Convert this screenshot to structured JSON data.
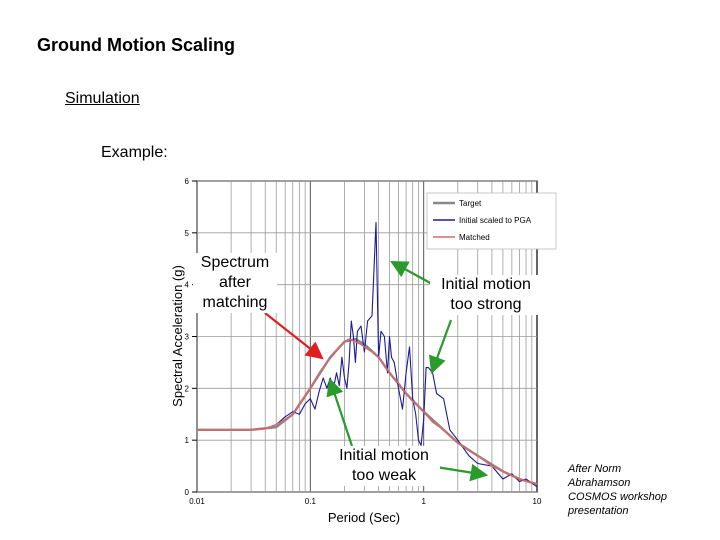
{
  "slide": {
    "title": "Ground Motion Scaling",
    "subtitle": "Simulation",
    "example_label": "Example:",
    "credit": "After Norm\nAbrahamson\nCOSMOS workshop\npresentation"
  },
  "annotations": {
    "after_matching": "Spectrum\nafter\nmatching",
    "too_strong": "Initial motion\ntoo strong",
    "too_weak": "Initial motion\ntoo weak"
  },
  "colors": {
    "target": "#888888",
    "initial": "#1a1a9a",
    "matched": "#d46a6a",
    "arrow_red": "#e02020",
    "arrow_green": "#2a9a2a"
  },
  "chart_data": {
    "type": "line",
    "xscale": "log",
    "xlabel": "Period (Sec)",
    "ylabel": "Spectral Acceleration (g)",
    "xlim": [
      0.01,
      10
    ],
    "ylim": [
      0,
      6
    ],
    "x_ticks": [
      "0.01",
      "0.1",
      "1",
      "10"
    ],
    "y_ticks": [
      "0",
      "1",
      "2",
      "3",
      "4",
      "5",
      "6"
    ],
    "grid": true,
    "legend_position": "top-right",
    "series": [
      {
        "name": "Target",
        "x": [
          0.01,
          0.02,
          0.03,
          0.05,
          0.07,
          0.1,
          0.15,
          0.2,
          0.25,
          0.3,
          0.4,
          0.5,
          0.7,
          1.0,
          1.5,
          2.0,
          3.0,
          5.0,
          7.0,
          10.0
        ],
        "y": [
          1.2,
          1.2,
          1.2,
          1.25,
          1.5,
          2.0,
          2.6,
          2.9,
          2.95,
          2.85,
          2.6,
          2.3,
          1.9,
          1.55,
          1.2,
          0.95,
          0.7,
          0.4,
          0.25,
          0.15
        ]
      },
      {
        "name": "Initial scaled to PGA",
        "x": [
          0.01,
          0.02,
          0.03,
          0.04,
          0.05,
          0.06,
          0.07,
          0.08,
          0.09,
          0.1,
          0.11,
          0.12,
          0.13,
          0.14,
          0.15,
          0.16,
          0.17,
          0.18,
          0.19,
          0.2,
          0.21,
          0.22,
          0.23,
          0.24,
          0.25,
          0.26,
          0.28,
          0.3,
          0.32,
          0.35,
          0.38,
          0.4,
          0.42,
          0.45,
          0.48,
          0.5,
          0.52,
          0.55,
          0.6,
          0.65,
          0.7,
          0.75,
          0.8,
          0.85,
          0.9,
          0.95,
          1.0,
          1.05,
          1.1,
          1.2,
          1.3,
          1.5,
          1.7,
          2.0,
          2.5,
          3.0,
          4.0,
          5.0,
          6.0,
          7.0,
          8.0,
          10.0
        ],
        "y": [
          1.2,
          1.2,
          1.2,
          1.22,
          1.3,
          1.45,
          1.55,
          1.5,
          1.7,
          1.8,
          1.6,
          1.95,
          2.2,
          2.0,
          2.2,
          2.0,
          2.3,
          2.05,
          2.6,
          2.2,
          2.0,
          2.5,
          3.3,
          3.0,
          2.5,
          3.1,
          3.2,
          2.7,
          3.3,
          3.4,
          5.2,
          2.6,
          3.1,
          3.0,
          2.3,
          3.0,
          2.6,
          2.5,
          2.0,
          1.6,
          2.3,
          2.8,
          1.8,
          1.5,
          1.0,
          0.9,
          1.4,
          2.4,
          2.4,
          2.3,
          1.9,
          1.8,
          1.2,
          1.0,
          0.7,
          0.55,
          0.5,
          0.25,
          0.35,
          0.2,
          0.25,
          0.1
        ]
      },
      {
        "name": "Matched",
        "x": [
          0.01,
          0.02,
          0.03,
          0.04,
          0.05,
          0.06,
          0.07,
          0.08,
          0.09,
          0.1,
          0.12,
          0.14,
          0.16,
          0.18,
          0.2,
          0.22,
          0.25,
          0.28,
          0.3,
          0.35,
          0.4,
          0.45,
          0.5,
          0.6,
          0.7,
          0.8,
          0.9,
          1.0,
          1.2,
          1.5,
          2.0,
          2.5,
          3.0,
          4.0,
          5.0,
          7.0,
          10.0
        ],
        "y": [
          1.2,
          1.2,
          1.2,
          1.22,
          1.3,
          1.4,
          1.5,
          1.7,
          1.85,
          2.0,
          2.3,
          2.5,
          2.65,
          2.8,
          2.9,
          2.95,
          2.9,
          2.85,
          2.8,
          2.7,
          2.6,
          2.45,
          2.3,
          2.1,
          1.9,
          1.75,
          1.65,
          1.55,
          1.35,
          1.2,
          0.95,
          0.8,
          0.7,
          0.5,
          0.4,
          0.25,
          0.15
        ]
      }
    ]
  }
}
